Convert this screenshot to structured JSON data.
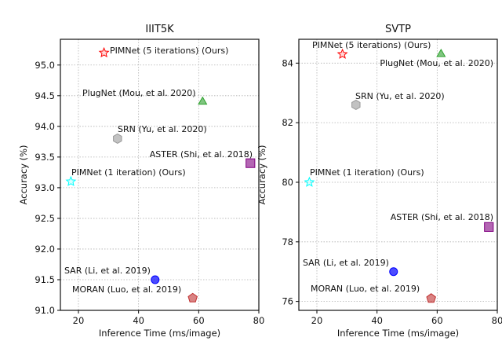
{
  "chart_data": [
    {
      "type": "scatter",
      "title": "IIIT5K",
      "xlabel": "Inference Time (ms/image)",
      "ylabel": "Accuracy (%)",
      "xlim": [
        14,
        80
      ],
      "ylim": [
        91.0,
        95.42
      ],
      "xticks": [
        "20",
        "40",
        "60",
        "80"
      ],
      "yticks": [
        "91.0",
        "91.5",
        "92.0",
        "92.5",
        "93.0",
        "93.5",
        "94.0",
        "94.5",
        "95.0"
      ],
      "grid": true,
      "points": [
        {
          "label": "PIMNet (5 iterations) (Ours)",
          "x": 28.5,
          "y": 95.2,
          "marker": "star",
          "color": "#ff0000"
        },
        {
          "label": "PlugNet (Mou, et al. 2020)",
          "x": 61.3,
          "y": 94.4,
          "marker": "triangle",
          "color": "#2ca02c"
        },
        {
          "label": "SRN (Yu, et al. 2020)",
          "x": 33,
          "y": 93.8,
          "marker": "hexagon",
          "color": "#999999"
        },
        {
          "label": "ASTER (Shi, et al. 2018)",
          "x": 77.2,
          "y": 93.4,
          "marker": "square",
          "color": "#800080"
        },
        {
          "label": "PIMNet (1 iteration) (Ours)",
          "x": 17.5,
          "y": 93.1,
          "marker": "star",
          "color": "#00ffff"
        },
        {
          "label": "SAR (Li, et al. 2019)",
          "x": 45.5,
          "y": 91.5,
          "marker": "circle",
          "color": "#0000ff"
        },
        {
          "label": "MORAN (Luo, et al. 2019)",
          "x": 58,
          "y": 91.2,
          "marker": "pentagon",
          "color": "#c03030"
        }
      ]
    },
    {
      "type": "scatter",
      "title": "SVTP",
      "xlabel": "Inference Time (ms/image)",
      "ylabel": "Accuracy (%)",
      "xlim": [
        14,
        80
      ],
      "ylim": [
        75.7,
        84.8
      ],
      "xticks": [
        "20",
        "40",
        "60",
        "80"
      ],
      "yticks": [
        "76",
        "78",
        "80",
        "82",
        "84"
      ],
      "grid": true,
      "points": [
        {
          "label": "PIMNet (5 iterations) (Ours)",
          "x": 28.5,
          "y": 84.3,
          "marker": "star",
          "color": "#ff0000"
        },
        {
          "label": "PlugNet (Mou, et al. 2020)",
          "x": 61.3,
          "y": 84.3,
          "marker": "triangle",
          "color": "#2ca02c"
        },
        {
          "label": "SRN (Yu, et al. 2020)",
          "x": 33,
          "y": 82.6,
          "marker": "hexagon",
          "color": "#999999"
        },
        {
          "label": "PIMNet (1 iteration) (Ours)",
          "x": 17.5,
          "y": 80.0,
          "marker": "star",
          "color": "#00ffff"
        },
        {
          "label": "ASTER (Shi, et al. 2018)",
          "x": 77.2,
          "y": 78.5,
          "marker": "square",
          "color": "#800080"
        },
        {
          "label": "SAR (Li, et al. 2019)",
          "x": 45.5,
          "y": 77.0,
          "marker": "circle",
          "color": "#0000ff"
        },
        {
          "label": "MORAN (Luo, et al. 2019)",
          "x": 58,
          "y": 76.1,
          "marker": "pentagon",
          "color": "#c03030"
        }
      ]
    }
  ]
}
